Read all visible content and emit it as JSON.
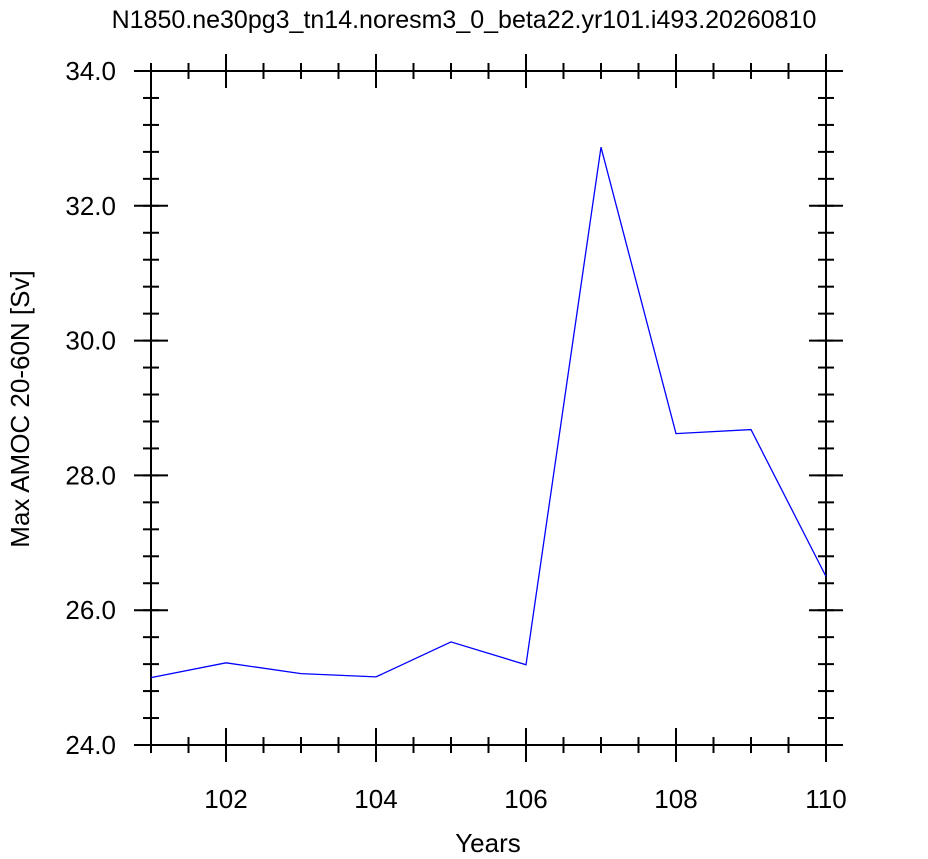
{
  "chart_data": {
    "type": "line",
    "title": "N1850.ne30pg3_tn14.noresm3_0_beta22.yr101.i493.20260810",
    "xlabel": "Years",
    "ylabel": "Max AMOC 20-60N [Sv]",
    "xlim": [
      101,
      110
    ],
    "ylim": [
      24.0,
      34.0
    ],
    "x_ticks": [
      102,
      104,
      106,
      108,
      110
    ],
    "x_tick_labels": [
      "102",
      "104",
      "106",
      "108",
      "110"
    ],
    "y_ticks": [
      24.0,
      26.0,
      28.0,
      30.0,
      32.0,
      34.0
    ],
    "y_tick_labels": [
      "24.0",
      "26.0",
      "28.0",
      "30.0",
      "32.0",
      "34.0"
    ],
    "grid": false,
    "legend": "none",
    "series": [
      {
        "color": "#0000ff",
        "x": [
          101,
          102,
          103,
          104,
          105,
          106,
          107,
          108,
          109,
          110
        ],
        "y": [
          25.0,
          25.22,
          25.06,
          25.01,
          25.53,
          25.19,
          32.87,
          28.62,
          28.68,
          26.5
        ]
      }
    ]
  }
}
